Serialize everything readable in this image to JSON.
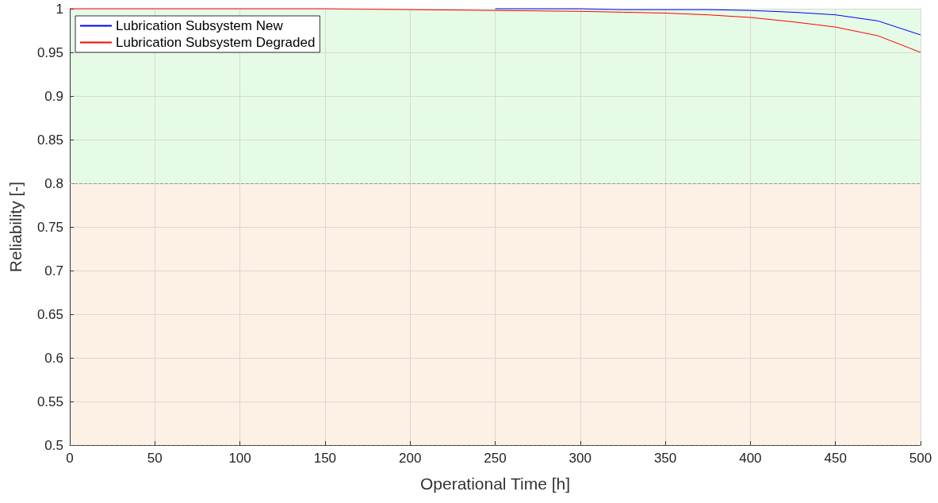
{
  "chart_data": {
    "type": "line",
    "xlabel": "Operational Time [h]",
    "ylabel": "Reliability [-]",
    "x": [
      0,
      50,
      100,
      150,
      200,
      250,
      300,
      325,
      350,
      375,
      400,
      425,
      450,
      475,
      500
    ],
    "series": [
      {
        "name": "Lubrication Subsystem New",
        "color": "#0000ff",
        "values": [
          null,
          null,
          null,
          null,
          null,
          1,
          1,
          0.999,
          0.999,
          0.999,
          0.998,
          0.996,
          0.993,
          0.986,
          0.97
        ]
      },
      {
        "name": "Lubrication Subsystem Degraded",
        "color": "#ff0000",
        "values": [
          1,
          1,
          1,
          1,
          0.999,
          0.998,
          0.997,
          0.996,
          0.995,
          0.993,
          0.99,
          0.985,
          0.979,
          0.969,
          0.95
        ]
      }
    ],
    "xlim": [
      0,
      500
    ],
    "xticks": [
      0,
      50,
      100,
      150,
      200,
      250,
      300,
      350,
      400,
      450,
      500
    ],
    "ylim": [
      0.5,
      1
    ],
    "yticks": [
      0.5,
      0.55,
      0.6,
      0.65,
      0.7,
      0.75,
      0.8,
      0.85,
      0.9,
      0.95,
      1
    ],
    "bands": [
      {
        "axis": "y",
        "from": 0.8,
        "to": 1,
        "color": "#e5fbe5"
      },
      {
        "axis": "y",
        "from": 0.5,
        "to": 0.8,
        "color": "#fdf0e4"
      }
    ],
    "ref_lines": [
      {
        "axis": "y",
        "value": 0.8,
        "line_style": "dashed",
        "color": "#999999"
      },
      {
        "axis": "y",
        "value": 0.5,
        "line_style": "dashed",
        "color": "#555555"
      }
    ],
    "grid": true,
    "legend": "top left",
    "marker": "none",
    "line_style": "solid"
  }
}
